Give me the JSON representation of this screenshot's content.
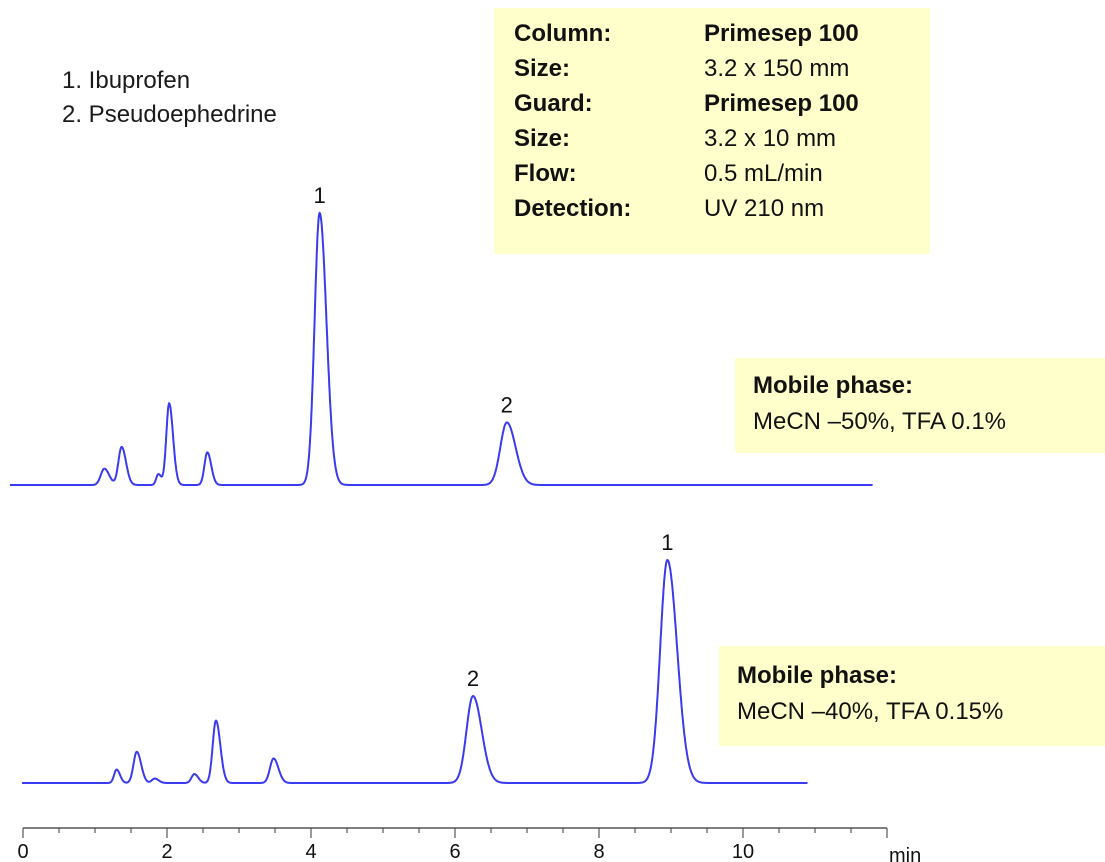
{
  "legend": {
    "items": [
      "1.  Ibuprofen",
      "2.  Pseudoephedrine"
    ]
  },
  "conditions": [
    {
      "label": "Column:",
      "value": "Primesep 100",
      "bold": true
    },
    {
      "label": "Size:",
      "value": "3.2 x 150 mm",
      "bold": false
    },
    {
      "label": "Guard:",
      "value": "Primesep 100",
      "bold": true
    },
    {
      "label": "Size:",
      "value": "3.2 x 10 mm",
      "bold": false
    },
    {
      "label": "Flow:",
      "value": "0.5 mL/min",
      "bold": false
    },
    {
      "label": "Detection:",
      "value": "UV 210 nm",
      "bold": false
    }
  ],
  "mobile_phases": [
    {
      "title": "Mobile phase:",
      "value": "MeCN –50%, TFA 0.1%"
    },
    {
      "title": "Mobile phase:",
      "value": "MeCN –40%, TFA 0.15%"
    }
  ],
  "chart_data": {
    "type": "line",
    "xlabel": "min",
    "xlim": [
      0,
      12
    ],
    "xticks": [
      0,
      2,
      4,
      6,
      8,
      10
    ],
    "line_color": "#3a3af0",
    "series": [
      {
        "x_end": 11.8,
        "peaks": [
          {
            "x": 1.13,
            "height": 0.06,
            "width": 0.05,
            "label": ""
          },
          {
            "x": 1.37,
            "height": 0.14,
            "width": 0.045,
            "label": ""
          },
          {
            "x": 1.88,
            "height": 0.04,
            "width": 0.03,
            "label": ""
          },
          {
            "x": 2.03,
            "height": 0.3,
            "width": 0.04,
            "label": ""
          },
          {
            "x": 2.56,
            "height": 0.12,
            "width": 0.04,
            "label": ""
          },
          {
            "x": 4.12,
            "height": 1.0,
            "width": 0.07,
            "label": "1"
          },
          {
            "x": 6.72,
            "height": 0.23,
            "width": 0.09,
            "label": "2"
          }
        ]
      },
      {
        "x_end": 10.9,
        "peaks": [
          {
            "x": 1.3,
            "height": 0.06,
            "width": 0.035,
            "label": ""
          },
          {
            "x": 1.58,
            "height": 0.14,
            "width": 0.045,
            "label": ""
          },
          {
            "x": 1.83,
            "height": 0.02,
            "width": 0.04,
            "label": ""
          },
          {
            "x": 2.38,
            "height": 0.04,
            "width": 0.04,
            "label": ""
          },
          {
            "x": 2.68,
            "height": 0.28,
            "width": 0.045,
            "label": ""
          },
          {
            "x": 3.48,
            "height": 0.11,
            "width": 0.05,
            "label": ""
          },
          {
            "x": 6.25,
            "height": 0.39,
            "width": 0.09,
            "label": "2"
          },
          {
            "x": 8.95,
            "height": 1.0,
            "width": 0.1,
            "label": "1"
          }
        ]
      }
    ]
  }
}
